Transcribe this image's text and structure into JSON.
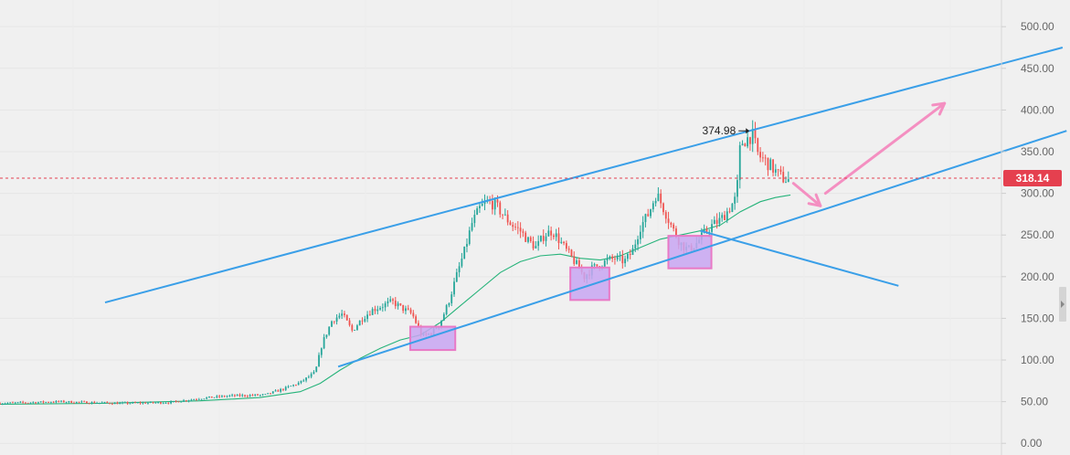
{
  "chart_data": {
    "type": "candlestick",
    "y_axis": {
      "ticks": [
        "500.00",
        "450.00",
        "400.00",
        "350.00",
        "300.00",
        "250.00",
        "200.00",
        "150.00",
        "100.00",
        "50.00",
        "0.00"
      ],
      "tick_values": [
        500,
        450,
        400,
        350,
        300,
        250,
        200,
        150,
        100,
        50,
        0
      ],
      "range": [
        -14,
        532
      ],
      "position": "right"
    },
    "x_axis": {
      "range": [
        0,
        1000
      ]
    },
    "grid": true,
    "current_price": {
      "value": 318.14,
      "label": "318.14",
      "color": "#e5404f"
    },
    "peak_annotation": {
      "value": 374.98,
      "label": "374.98",
      "x": 750
    },
    "colors": {
      "up": "#26a69a",
      "down": "#ef5350",
      "moving_average": "#26b37a",
      "trendline": "#3a9fe8",
      "support_box_fill": "#c8a6f2",
      "support_box_border": "#e879c6",
      "arrow": "#f48fc1",
      "price_tag": "#e5404f",
      "axis_text": "#666666"
    },
    "price_path": [
      [
        0,
        48
      ],
      [
        60,
        50
      ],
      [
        120,
        48
      ],
      [
        170,
        49
      ],
      [
        200,
        54
      ],
      [
        230,
        57
      ],
      [
        265,
        58
      ],
      [
        285,
        66
      ],
      [
        300,
        73
      ],
      [
        315,
        85
      ],
      [
        322,
        120
      ],
      [
        332,
        148
      ],
      [
        342,
        155
      ],
      [
        352,
        135
      ],
      [
        362,
        150
      ],
      [
        372,
        160
      ],
      [
        382,
        165
      ],
      [
        392,
        170
      ],
      [
        402,
        162
      ],
      [
        412,
        155
      ],
      [
        422,
        128
      ],
      [
        432,
        133
      ],
      [
        440,
        145
      ],
      [
        448,
        168
      ],
      [
        456,
        200
      ],
      [
        464,
        230
      ],
      [
        472,
        265
      ],
      [
        480,
        283
      ],
      [
        488,
        290
      ],
      [
        496,
        285
      ],
      [
        504,
        272
      ],
      [
        512,
        262
      ],
      [
        520,
        255
      ],
      [
        528,
        243
      ],
      [
        536,
        235
      ],
      [
        544,
        250
      ],
      [
        552,
        255
      ],
      [
        560,
        242
      ],
      [
        568,
        228
      ],
      [
        576,
        215
      ],
      [
        584,
        200
      ],
      [
        592,
        210
      ],
      [
        600,
        215
      ],
      [
        608,
        220
      ],
      [
        616,
        222
      ],
      [
        624,
        218
      ],
      [
        632,
        230
      ],
      [
        640,
        260
      ],
      [
        648,
        275
      ],
      [
        656,
        300
      ],
      [
        664,
        280
      ],
      [
        672,
        258
      ],
      [
        680,
        240
      ],
      [
        688,
        232
      ],
      [
        696,
        240
      ],
      [
        704,
        252
      ],
      [
        712,
        262
      ],
      [
        720,
        268
      ],
      [
        728,
        280
      ],
      [
        736,
        295
      ],
      [
        740,
        360
      ],
      [
        746,
        365
      ],
      [
        752,
        370
      ],
      [
        758,
        345
      ],
      [
        764,
        340
      ],
      [
        770,
        333
      ],
      [
        776,
        325
      ],
      [
        782,
        318
      ],
      [
        788,
        316
      ]
    ],
    "moving_average": [
      [
        0,
        47
      ],
      [
        100,
        48
      ],
      [
        200,
        51
      ],
      [
        260,
        55
      ],
      [
        300,
        62
      ],
      [
        320,
        72
      ],
      [
        340,
        88
      ],
      [
        360,
        102
      ],
      [
        380,
        114
      ],
      [
        400,
        124
      ],
      [
        420,
        130
      ],
      [
        440,
        145
      ],
      [
        460,
        165
      ],
      [
        480,
        185
      ],
      [
        500,
        205
      ],
      [
        520,
        218
      ],
      [
        540,
        225
      ],
      [
        560,
        227
      ],
      [
        580,
        222
      ],
      [
        600,
        220
      ],
      [
        620,
        225
      ],
      [
        640,
        235
      ],
      [
        660,
        245
      ],
      [
        680,
        250
      ],
      [
        700,
        255
      ],
      [
        720,
        262
      ],
      [
        740,
        278
      ],
      [
        760,
        290
      ],
      [
        775,
        295
      ],
      [
        790,
        298
      ]
    ],
    "trendlines": [
      {
        "from": [
          105,
          169
        ],
        "to": [
          1062,
          475
        ]
      },
      {
        "from": [
          338,
          92
        ],
        "to": [
          1066,
          375
        ]
      },
      {
        "from": [
          700,
          255
        ],
        "to": [
          898,
          189
        ]
      }
    ],
    "boxes": [
      {
        "x0": 410,
        "x1": 455,
        "y0": 112,
        "y1": 140
      },
      {
        "x0": 570,
        "x1": 609,
        "y0": 172,
        "y1": 211
      },
      {
        "x0": 668,
        "x1": 711,
        "y0": 210,
        "y1": 249
      }
    ],
    "arrows": [
      {
        "from": [
          793,
          312
        ],
        "to": [
          820,
          285
        ]
      },
      {
        "from": [
          825,
          300
        ],
        "to": [
          944,
          408
        ]
      }
    ]
  }
}
